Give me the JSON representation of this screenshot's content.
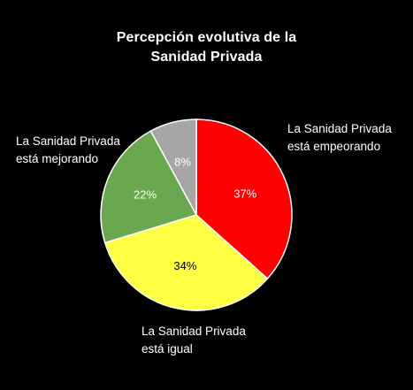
{
  "chart_data": {
    "type": "pie",
    "title_lines": [
      "Percepción evolutiva de la",
      "Sanidad Privada"
    ],
    "slices": [
      {
        "label_lines": [
          "La Sanidad Privada",
          "está empeorando"
        ],
        "value": 37,
        "value_label": "37%",
        "color": "#ff0000"
      },
      {
        "label_lines": [
          "La Sanidad Privada",
          "está igual"
        ],
        "value": 34,
        "value_label": "34%",
        "color": "#ffff44"
      },
      {
        "label_lines": [
          "La Sanidad Privada",
          "está mejorando"
        ],
        "value": 22,
        "value_label": "22%",
        "color": "#6aa84f"
      },
      {
        "value": 8,
        "value_label": "8%",
        "color": "#a6a6a6"
      }
    ],
    "start_angle_deg": 0,
    "direction": "clockwise",
    "slice_border_color": "#ffffff",
    "background_color": "#000000",
    "legend": "none"
  }
}
